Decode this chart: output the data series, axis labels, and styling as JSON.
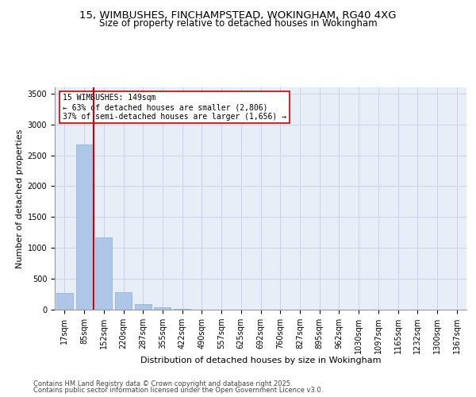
{
  "title_line1": "15, WIMBUSHES, FINCHAMPSTEAD, WOKINGHAM, RG40 4XG",
  "title_line2": "Size of property relative to detached houses in Wokingham",
  "xlabel": "Distribution of detached houses by size in Wokingham",
  "ylabel": "Number of detached properties",
  "categories": [
    "17sqm",
    "85sqm",
    "152sqm",
    "220sqm",
    "287sqm",
    "355sqm",
    "422sqm",
    "490sqm",
    "557sqm",
    "625sqm",
    "692sqm",
    "760sqm",
    "827sqm",
    "895sqm",
    "962sqm",
    "1030sqm",
    "1097sqm",
    "1165sqm",
    "1232sqm",
    "1300sqm",
    "1367sqm"
  ],
  "values": [
    270,
    2670,
    1170,
    280,
    90,
    35,
    15,
    5,
    0,
    0,
    0,
    0,
    0,
    0,
    0,
    0,
    0,
    0,
    0,
    0,
    0
  ],
  "bar_color": "#aec6e8",
  "bar_edge_color": "#8ab0d8",
  "grid_color": "#c8d4e8",
  "background_color": "#e8eef8",
  "vline_x_index": 2,
  "vline_color": "#cc0000",
  "vline_label": "15 WIMBUSHES: 149sqm",
  "annotation_line2": "← 63% of detached houses are smaller (2,806)",
  "annotation_line3": "37% of semi-detached houses are larger (1,656) →",
  "annotation_box_color": "#ffffff",
  "annotation_box_edge": "#cc0000",
  "ylim": [
    0,
    3600
  ],
  "yticks": [
    0,
    500,
    1000,
    1500,
    2000,
    2500,
    3000,
    3500
  ],
  "footer_line1": "Contains HM Land Registry data © Crown copyright and database right 2025.",
  "footer_line2": "Contains public sector information licensed under the Open Government Licence v3.0.",
  "title_fontsize": 9.5,
  "subtitle_fontsize": 8.5,
  "axis_label_fontsize": 8,
  "tick_fontsize": 7,
  "annotation_fontsize": 7,
  "footer_fontsize": 6
}
